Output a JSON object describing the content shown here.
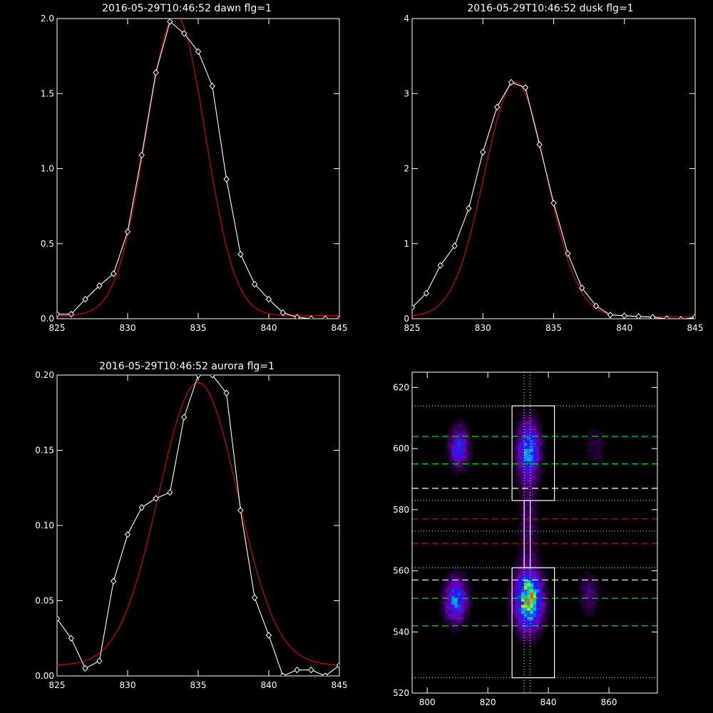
{
  "colors": {
    "background": "#000000",
    "axis": "#ffffff",
    "data": "#ffffff",
    "fit": "#cc0000",
    "green_line": "#00dd00",
    "red_line": "#dd0000",
    "box": "#ffffff"
  },
  "chart_data": [
    {
      "type": "line",
      "title": "2016-05-29T10:46:52 dawn flg=1",
      "xlim": [
        825,
        845
      ],
      "ylim": [
        0,
        2.0
      ],
      "xticks": [
        "825",
        "830",
        "835",
        "840",
        "845"
      ],
      "yticks": [
        "0.0",
        "0.5",
        "1.0",
        "1.5",
        "2.0"
      ],
      "series": [
        {
          "x": [
            825,
            826,
            827,
            828,
            829,
            830,
            831,
            832,
            833,
            834,
            835,
            836,
            837,
            838,
            839,
            840,
            841,
            842,
            843,
            844,
            845
          ],
          "y": [
            0.03,
            0.03,
            0.13,
            0.22,
            0.3,
            0.58,
            1.09,
            1.64,
            1.98,
            1.9,
            1.78,
            1.55,
            0.93,
            0.43,
            0.23,
            0.13,
            0.04,
            0.01,
            0.0,
            0.0,
            0.0
          ],
          "markers": "diamond"
        },
        {
          "fit": "gaussian",
          "amp": 2.0,
          "center": 833.4,
          "sigma": 2.1,
          "offset": 0.02
        }
      ]
    },
    {
      "type": "line",
      "title": "2016-05-29T10:46:52 dusk flg=1",
      "xlim": [
        825,
        845
      ],
      "ylim": [
        0,
        4
      ],
      "xticks": [
        "825",
        "830",
        "835",
        "840",
        "845"
      ],
      "yticks": [
        "0",
        "1",
        "2",
        "3",
        "4"
      ],
      "series": [
        {
          "x": [
            825,
            826,
            827,
            828,
            829,
            830,
            831,
            832,
            833,
            834,
            835,
            836,
            837,
            838,
            839,
            840,
            841,
            842,
            843,
            844,
            845
          ],
          "y": [
            0.15,
            0.34,
            0.71,
            0.97,
            1.47,
            2.22,
            2.82,
            3.15,
            3.08,
            2.32,
            1.54,
            0.87,
            0.41,
            0.17,
            0.05,
            0.04,
            0.03,
            0.02,
            0.0,
            -0.01,
            0.02
          ],
          "markers": "diamond"
        },
        {
          "fit": "gaussian",
          "amp": 3.12,
          "center": 832.3,
          "sigma": 2.2,
          "offset": 0.03
        }
      ]
    },
    {
      "type": "line",
      "title": "2016-05-29T10:46:52 aurora flg=1",
      "xlim": [
        825,
        845
      ],
      "ylim": [
        0,
        0.2
      ],
      "xticks": [
        "825",
        "830",
        "835",
        "840",
        "845"
      ],
      "yticks": [
        "0.00",
        "0.05",
        "0.10",
        "0.15",
        "0.20"
      ],
      "series": [
        {
          "x": [
            825,
            826,
            827,
            828,
            829,
            830,
            831,
            832,
            833,
            834,
            835,
            836,
            837,
            838,
            839,
            840,
            841,
            842,
            843,
            844,
            845
          ],
          "y": [
            0.038,
            0.025,
            0.005,
            0.01,
            0.063,
            0.094,
            0.112,
            0.118,
            0.122,
            0.172,
            0.2,
            0.2,
            0.188,
            0.11,
            0.052,
            0.027,
            0.0,
            0.004,
            0.004,
            0.0,
            0.007
          ],
          "markers": "diamond"
        },
        {
          "fit": "gaussian",
          "amp": 0.188,
          "center": 835.0,
          "sigma": 2.8,
          "offset": 0.007
        }
      ]
    },
    {
      "type": "heatmap",
      "title": "",
      "xlim": [
        795,
        876
      ],
      "ylim": [
        520,
        625
      ],
      "xticks": [
        "800",
        "820",
        "840",
        "860"
      ],
      "yticks": [
        "520",
        "540",
        "560",
        "580",
        "600",
        "620"
      ],
      "blobs": [
        {
          "x": 810,
          "y": 600,
          "sx": 2.2,
          "sy": 4.5,
          "amp": 0.45
        },
        {
          "x": 833,
          "y": 599,
          "sx": 2.5,
          "sy": 6.5,
          "amp": 0.6
        },
        {
          "x": 809,
          "y": 550,
          "sx": 2.5,
          "sy": 5.0,
          "amp": 0.55
        },
        {
          "x": 833,
          "y": 550,
          "sx": 3.0,
          "sy": 6.5,
          "amp": 0.9
        },
        {
          "x": 853,
          "y": 552,
          "sx": 2.2,
          "sy": 4.5,
          "amp": 0.2
        },
        {
          "x": 855,
          "y": 600,
          "sx": 2.2,
          "sy": 4.5,
          "amp": 0.12
        },
        {
          "x": 833,
          "y": 575,
          "sx": 2.0,
          "sy": 10,
          "amp": 0.18
        }
      ],
      "dashed_lines": [
        {
          "y": 604,
          "color": "green"
        },
        {
          "y": 595,
          "color": "green"
        },
        {
          "y": 587,
          "color": "white"
        },
        {
          "y": 577,
          "color": "red"
        },
        {
          "y": 569,
          "color": "red"
        },
        {
          "y": 557,
          "color": "white"
        },
        {
          "y": 551,
          "color": "green"
        },
        {
          "y": 542,
          "color": "green"
        }
      ],
      "dotted_lines": [
        614,
        583,
        573,
        561,
        525
      ],
      "vertical_dotted": [
        832,
        834
      ],
      "boxes": [
        {
          "x0": 828,
          "x1": 842,
          "y0": 583,
          "y1": 614
        },
        {
          "x0": 832,
          "x1": 834,
          "y0": 561,
          "y1": 583
        },
        {
          "x0": 828,
          "x1": 842,
          "y0": 525,
          "y1": 561
        }
      ]
    }
  ]
}
